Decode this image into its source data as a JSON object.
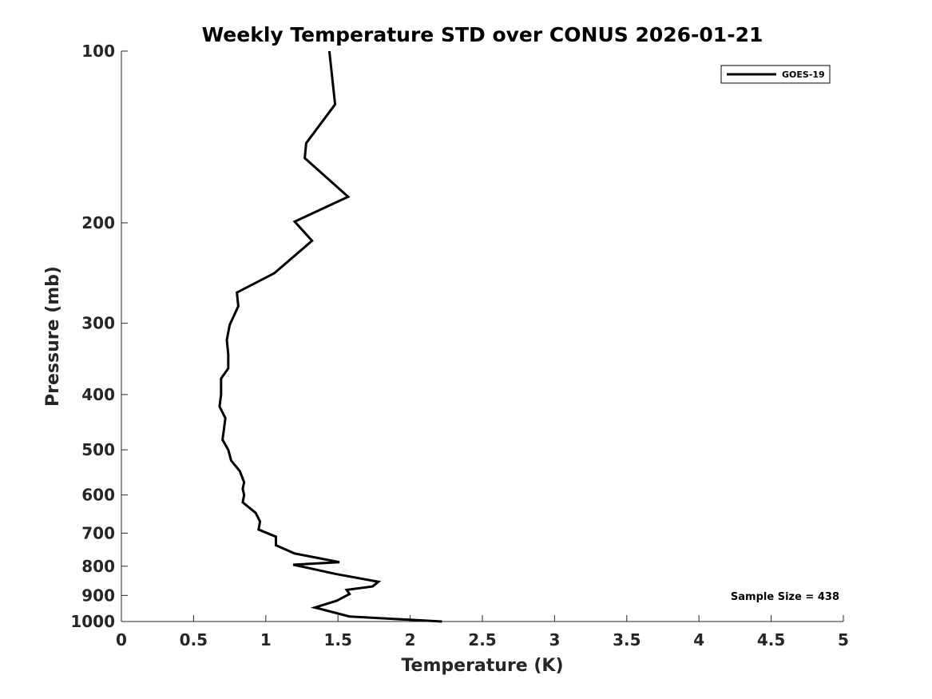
{
  "chart_data": {
    "type": "line",
    "title": "Weekly Temperature STD over CONUS 2026-01-21",
    "xlabel": "Temperature (K)",
    "ylabel": "Pressure (mb)",
    "xlim": [
      0,
      5
    ],
    "ylim": [
      100,
      1000
    ],
    "yscale": "log",
    "y_reversed": true,
    "grid": false,
    "legend_position": "top-right",
    "xticks": [
      0,
      0.5,
      1,
      1.5,
      2,
      2.5,
      3,
      3.5,
      4,
      4.5,
      5
    ],
    "xtick_labels": [
      "0",
      "0.5",
      "1",
      "1.5",
      "2",
      "2.5",
      "3",
      "3.5",
      "4",
      "4.5",
      "5"
    ],
    "yticks": [
      100,
      200,
      300,
      400,
      500,
      600,
      700,
      800,
      900,
      1000
    ],
    "ytick_labels": [
      "100",
      "200",
      "300",
      "400",
      "500",
      "600",
      "700",
      "800",
      "900",
      "1000"
    ],
    "annotation": "Sample Size = 438",
    "series": [
      {
        "name": "GOES-19",
        "color": "#000000",
        "x": [
          1.44,
          1.48,
          1.28,
          1.27,
          1.57,
          1.2,
          1.32,
          1.06,
          0.8,
          0.81,
          0.75,
          0.73,
          0.74,
          0.74,
          0.69,
          0.69,
          0.68,
          0.72,
          0.71,
          0.7,
          0.74,
          0.76,
          0.82,
          0.85,
          0.84,
          0.85,
          0.84,
          0.93,
          0.96,
          0.95,
          1.07,
          1.07,
          1.2,
          1.51,
          1.19,
          1.48,
          1.78,
          1.74,
          1.56,
          1.58,
          1.49,
          1.34,
          1.58,
          2.22
        ],
        "y": [
          100,
          124,
          145,
          154,
          180,
          199,
          215,
          245,
          265,
          280,
          302,
          321,
          340,
          360,
          375,
          400,
          420,
          440,
          460,
          480,
          500,
          522,
          545,
          570,
          585,
          600,
          618,
          645,
          668,
          690,
          710,
          735,
          760,
          787,
          795,
          825,
          852,
          868,
          880,
          895,
          920,
          945,
          980,
          1000
        ]
      }
    ]
  }
}
